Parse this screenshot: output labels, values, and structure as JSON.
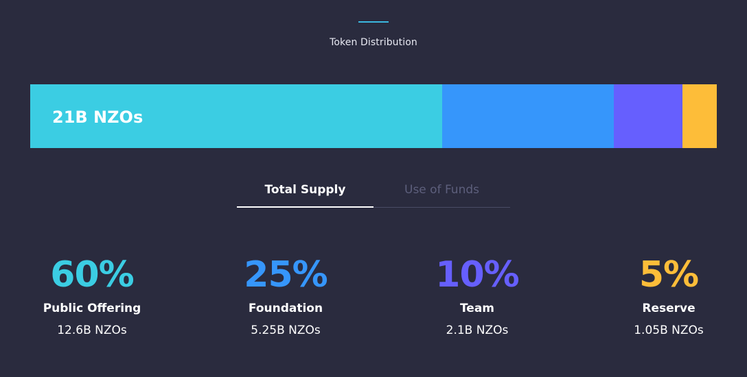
{
  "header": {
    "title": "Token Distribution",
    "accent_color": "#3bb8e0"
  },
  "distribution_bar": {
    "total_label": "21B NZOs",
    "segments": [
      {
        "name": "Public Offering",
        "share": 60,
        "color": "#3bcde3"
      },
      {
        "name": "Foundation",
        "share": 25,
        "color": "#3696fb"
      },
      {
        "name": "Team",
        "share": 10,
        "color": "#665ffe"
      },
      {
        "name": "Reserve",
        "share": 5,
        "color": "#fdbd39"
      }
    ]
  },
  "tabs": [
    {
      "label": "Total Supply",
      "active": true
    },
    {
      "label": "Use of Funds",
      "active": false
    }
  ],
  "stats": [
    {
      "percent": "60%",
      "name": "Public Offering",
      "amount": "12.6B NZOs",
      "color": "#3bcde3"
    },
    {
      "percent": "25%",
      "name": "Foundation",
      "amount": "5.25B NZOs",
      "color": "#3696fb"
    },
    {
      "percent": "10%",
      "name": "Team",
      "amount": "2.1B NZOs",
      "color": "#665ffe"
    },
    {
      "percent": "5%",
      "name": "Reserve",
      "amount": "1.05B NZOs",
      "color": "#fdbd39"
    }
  ]
}
